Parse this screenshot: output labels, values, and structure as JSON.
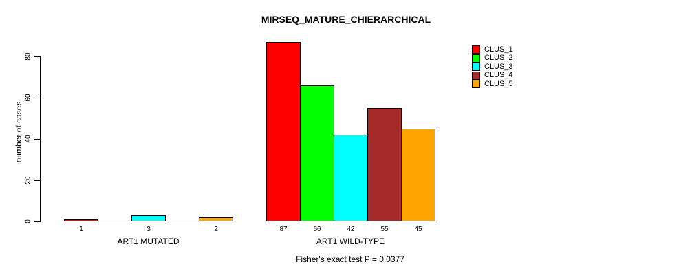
{
  "chart_data": {
    "type": "bar",
    "title": "MIRSEQ_MATURE_CHIERARCHICAL",
    "ylabel": "number of cases",
    "xlabel": "",
    "annotation": "Fisher's exact test P = 0.0377",
    "ylim": [
      0,
      87
    ],
    "yticks": [
      0,
      20,
      40,
      60,
      80
    ],
    "grid": false,
    "legend_position": "top-right",
    "legend": [
      {
        "label": "CLUS_1",
        "color": "#ff0000"
      },
      {
        "label": "CLUS_2",
        "color": "#00ff00"
      },
      {
        "label": "CLUS_3",
        "color": "#00ffff"
      },
      {
        "label": "CLUS_4",
        "color": "#a52a2a"
      },
      {
        "label": "CLUS_5",
        "color": "#ffa500"
      }
    ],
    "groups": [
      {
        "label": "ART1 MUTATED",
        "values": [
          1,
          0,
          3,
          0,
          2
        ],
        "bar_labels": [
          "1",
          "",
          "3",
          "",
          "2"
        ]
      },
      {
        "label": "ART1 WILD-TYPE",
        "values": [
          87,
          66,
          42,
          55,
          45
        ],
        "bar_labels": [
          "87",
          "66",
          "42",
          "55",
          "45"
        ]
      }
    ]
  }
}
